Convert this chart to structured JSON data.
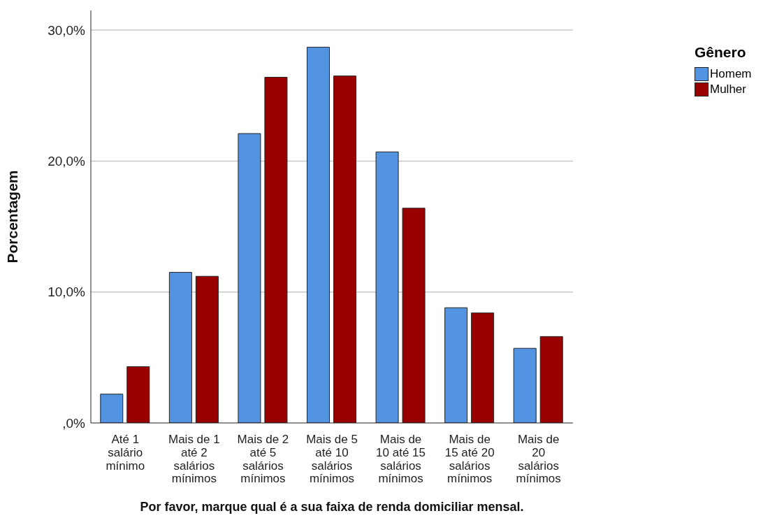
{
  "chart_data": {
    "type": "bar",
    "xlabel": "Por favor, marque qual é a sua faixa de renda domiciliar mensal.",
    "ylabel": "Porcentagem",
    "legend_title": "Gênero",
    "categories": [
      "Até 1 salário mínimo",
      "Mais de 1 até 2 salários mínimos",
      "Mais de 2 até 5 salários mínimos",
      "Mais de 5 até 10 salários mínimos",
      "Mais de 10 até 15 salários mínimos",
      "Mais de 15 até 20 salários mínimos",
      "Mais de 20 salários mínimos"
    ],
    "series": [
      {
        "name": "Homem",
        "color": "#5294e2",
        "values": [
          2.2,
          11.5,
          22.1,
          28.7,
          20.7,
          8.8,
          5.7
        ]
      },
      {
        "name": "Mulher",
        "color": "#990000",
        "values": [
          4.3,
          11.2,
          26.4,
          26.5,
          16.4,
          8.4,
          6.6
        ]
      }
    ],
    "ylim": [
      0,
      31.5
    ],
    "yticks": [
      {
        "value": 0,
        "label": ",0%"
      },
      {
        "value": 10,
        "label": "10,0%"
      },
      {
        "value": 20,
        "label": "20,0%"
      },
      {
        "value": 30,
        "label": "30,0%"
      }
    ],
    "grid": "y",
    "legend": "top right"
  }
}
